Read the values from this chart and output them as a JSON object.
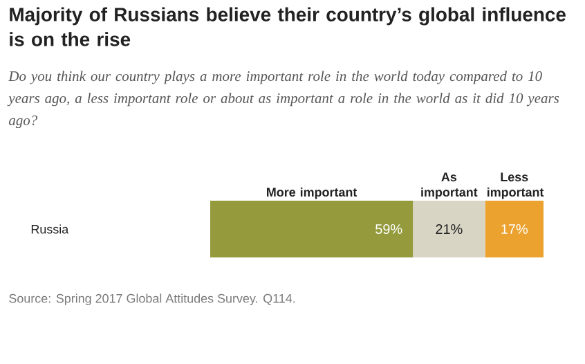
{
  "chart_data": {
    "type": "bar",
    "orientation": "horizontal",
    "stacked": true,
    "title": "Majority of Russians believe their country’s global influence is on the rise",
    "subtitle": "Do you think our country plays a more important role in the world today compared to 10 years ago, a less important role or about as important a role in the world as it did 10 years ago?",
    "categories": [
      "Russia"
    ],
    "series": [
      {
        "name": "More important",
        "color": "#959b3d",
        "values": [
          59
        ],
        "value_labels": [
          "59%"
        ]
      },
      {
        "name": "As important",
        "color": "#d9d5c5",
        "values": [
          21
        ],
        "value_labels": [
          "21%"
        ]
      },
      {
        "name": "Less important",
        "color": "#eba22f",
        "values": [
          17
        ],
        "value_labels": [
          "17%"
        ]
      }
    ],
    "annotations": [
      "Source: Spring 2017 Global Attitudes Survey. Q114."
    ]
  }
}
